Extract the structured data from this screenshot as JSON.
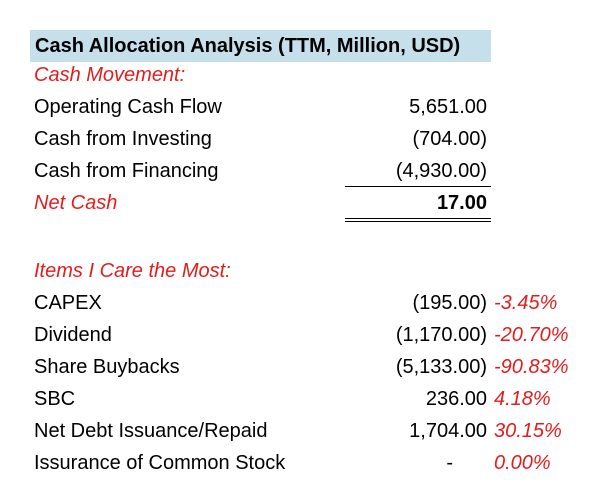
{
  "title": "Cash Allocation Analysis (TTM, Million, USD)",
  "cash_movement": {
    "heading": "Cash Movement:",
    "rows": [
      {
        "label": "Operating Cash Flow",
        "value": "5,651.00"
      },
      {
        "label": "Cash from Investing",
        "value": "(704.00)"
      },
      {
        "label": "Cash from Financing",
        "value": "(4,930.00)"
      }
    ],
    "net": {
      "label": "Net Cash",
      "value": "17.00"
    }
  },
  "items": {
    "heading": "Items I Care the Most:",
    "rows": [
      {
        "label": "CAPEX",
        "value": "(195.00)",
        "pct": "-3.45%"
      },
      {
        "label": "Dividend",
        "value": "(1,170.00)",
        "pct": "-20.70%"
      },
      {
        "label": "Share Buybacks",
        "value": "(5,133.00)",
        "pct": "-90.83%"
      },
      {
        "label": "SBC",
        "value": "236.00",
        "pct": "4.18%"
      },
      {
        "label": "Net Debt Issuance/Repaid",
        "value": "1,704.00",
        "pct": "30.15%"
      },
      {
        "label": "Issurance of Common Stock",
        "value": "-",
        "pct": "0.00%"
      }
    ]
  },
  "colors": {
    "title_bg": "#c5e0ea",
    "accent_red": "#e21d1d"
  }
}
